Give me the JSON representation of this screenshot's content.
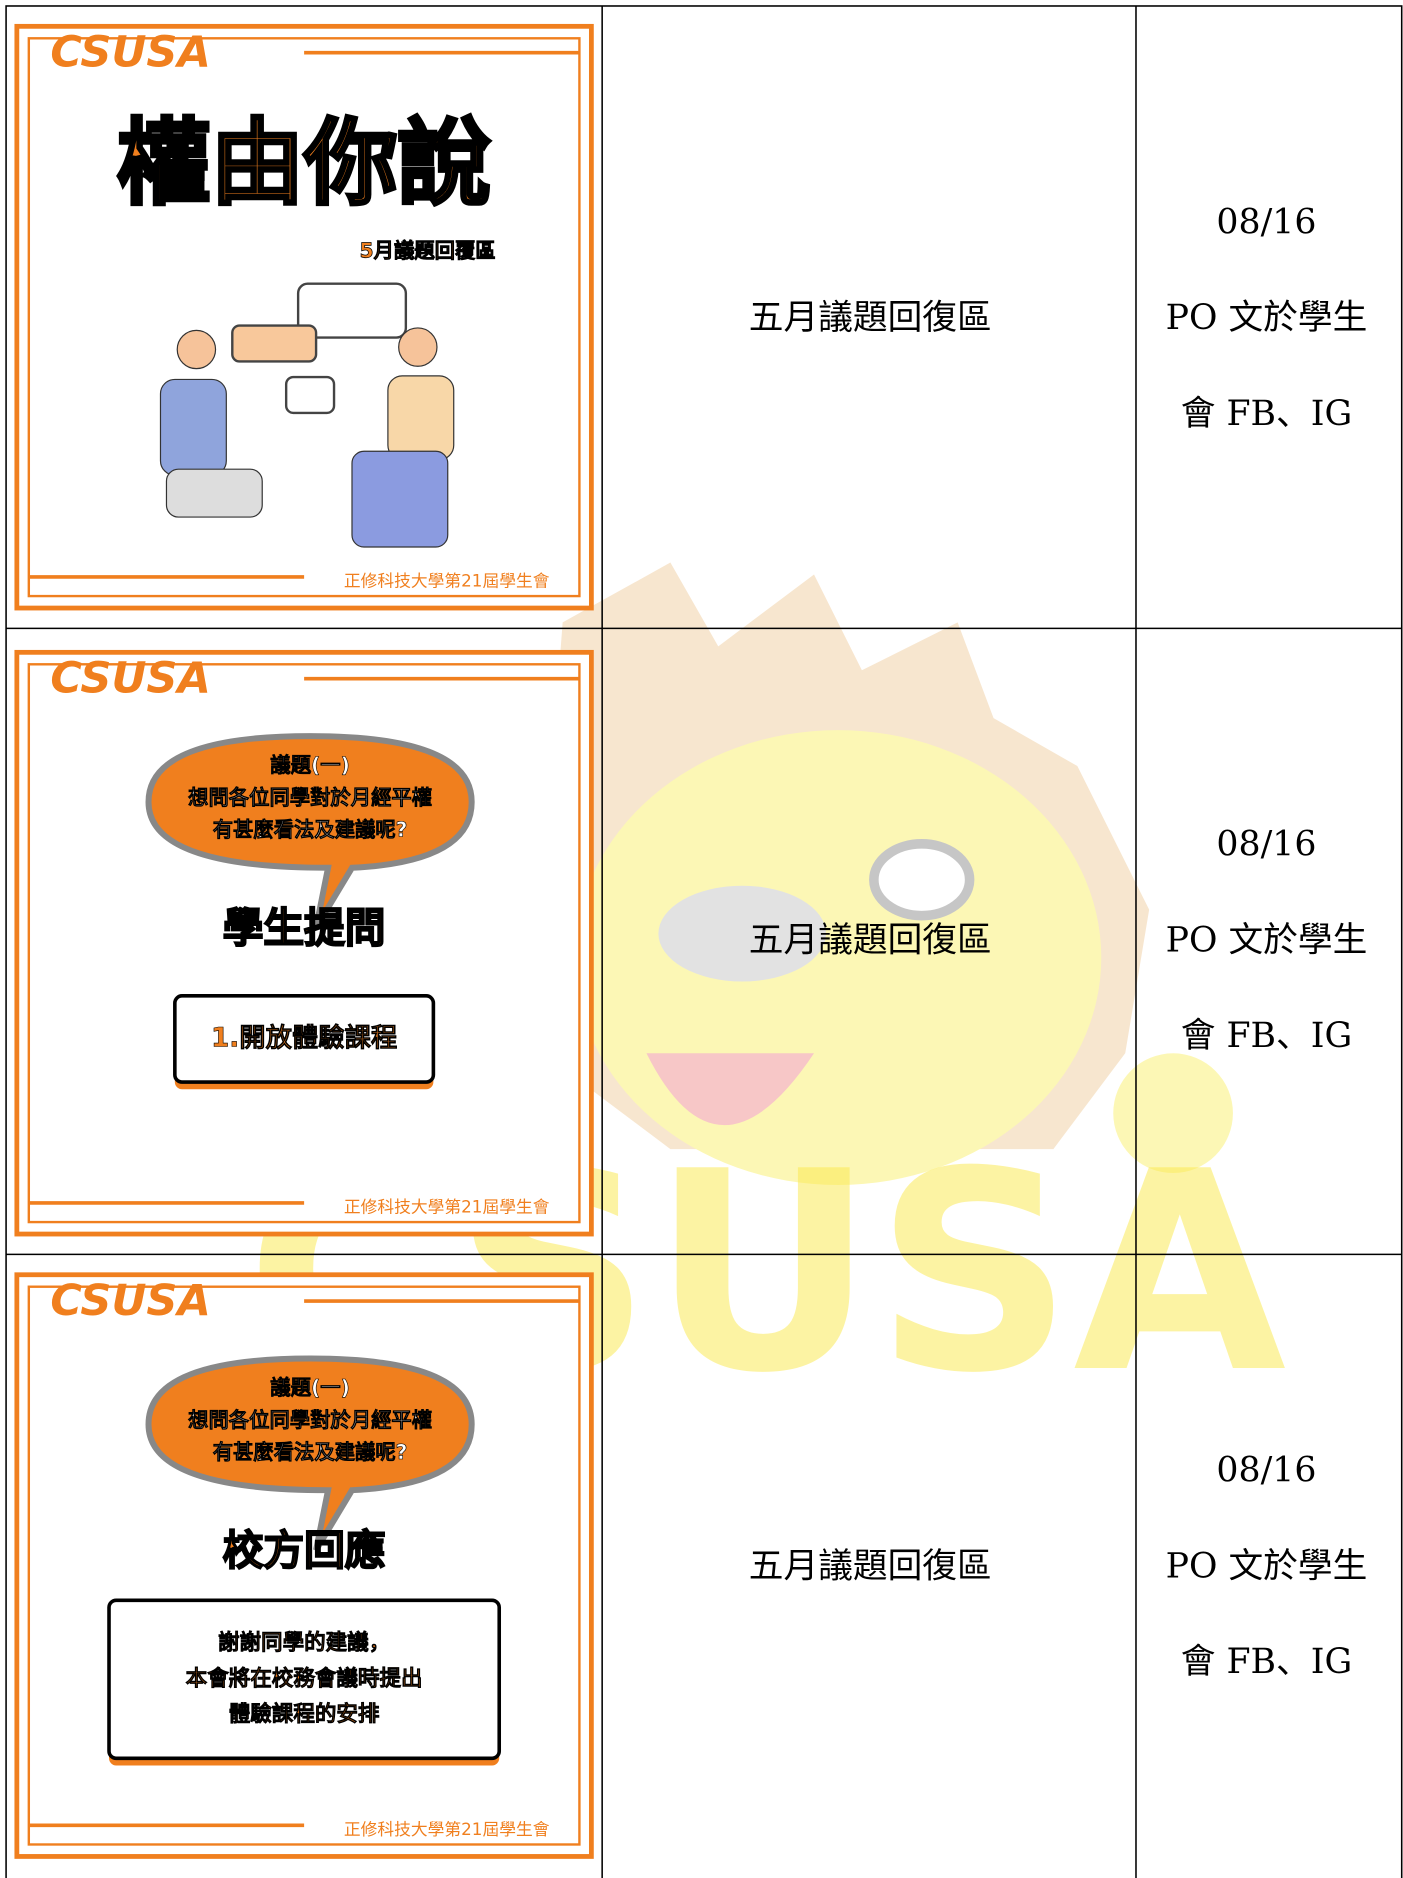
{
  "watermark": "CSUSA",
  "rows": [
    {
      "poster": {
        "brand": "CSUSA",
        "title": "權由你說",
        "subtitle": "5月議題回覆區",
        "footer": "正修科技大學第21屆學生會"
      },
      "description": "五月議題回復區",
      "date": "08/16",
      "channel": [
        "PO 文於學生",
        "會 FB、IG"
      ]
    },
    {
      "poster": {
        "brand": "CSUSA",
        "bubble": [
          "議題(一)",
          "想問各位同學對於月經平權",
          "有甚麼看法及建議呢?"
        ],
        "heading": "學生提問",
        "box": [
          "1.開放體驗課程"
        ],
        "footer": "正修科技大學第21屆學生會"
      },
      "description": "五月議題回復區",
      "date": "08/16",
      "channel": [
        "PO 文於學生",
        "會 FB、IG"
      ]
    },
    {
      "poster": {
        "brand": "CSUSA",
        "bubble": [
          "議題(一)",
          "想問各位同學對於月經平權",
          "有甚麼看法及建議呢?"
        ],
        "heading": "校方回應",
        "box": [
          "謝謝同學的建議，",
          "本會將在校務會議時提出",
          "體驗課程的安排"
        ],
        "footer": "正修科技大學第21屆學生會"
      },
      "description": "五月議題回復區",
      "date": "08/16",
      "channel": [
        "PO 文於學生",
        "會 FB、IG"
      ]
    }
  ]
}
